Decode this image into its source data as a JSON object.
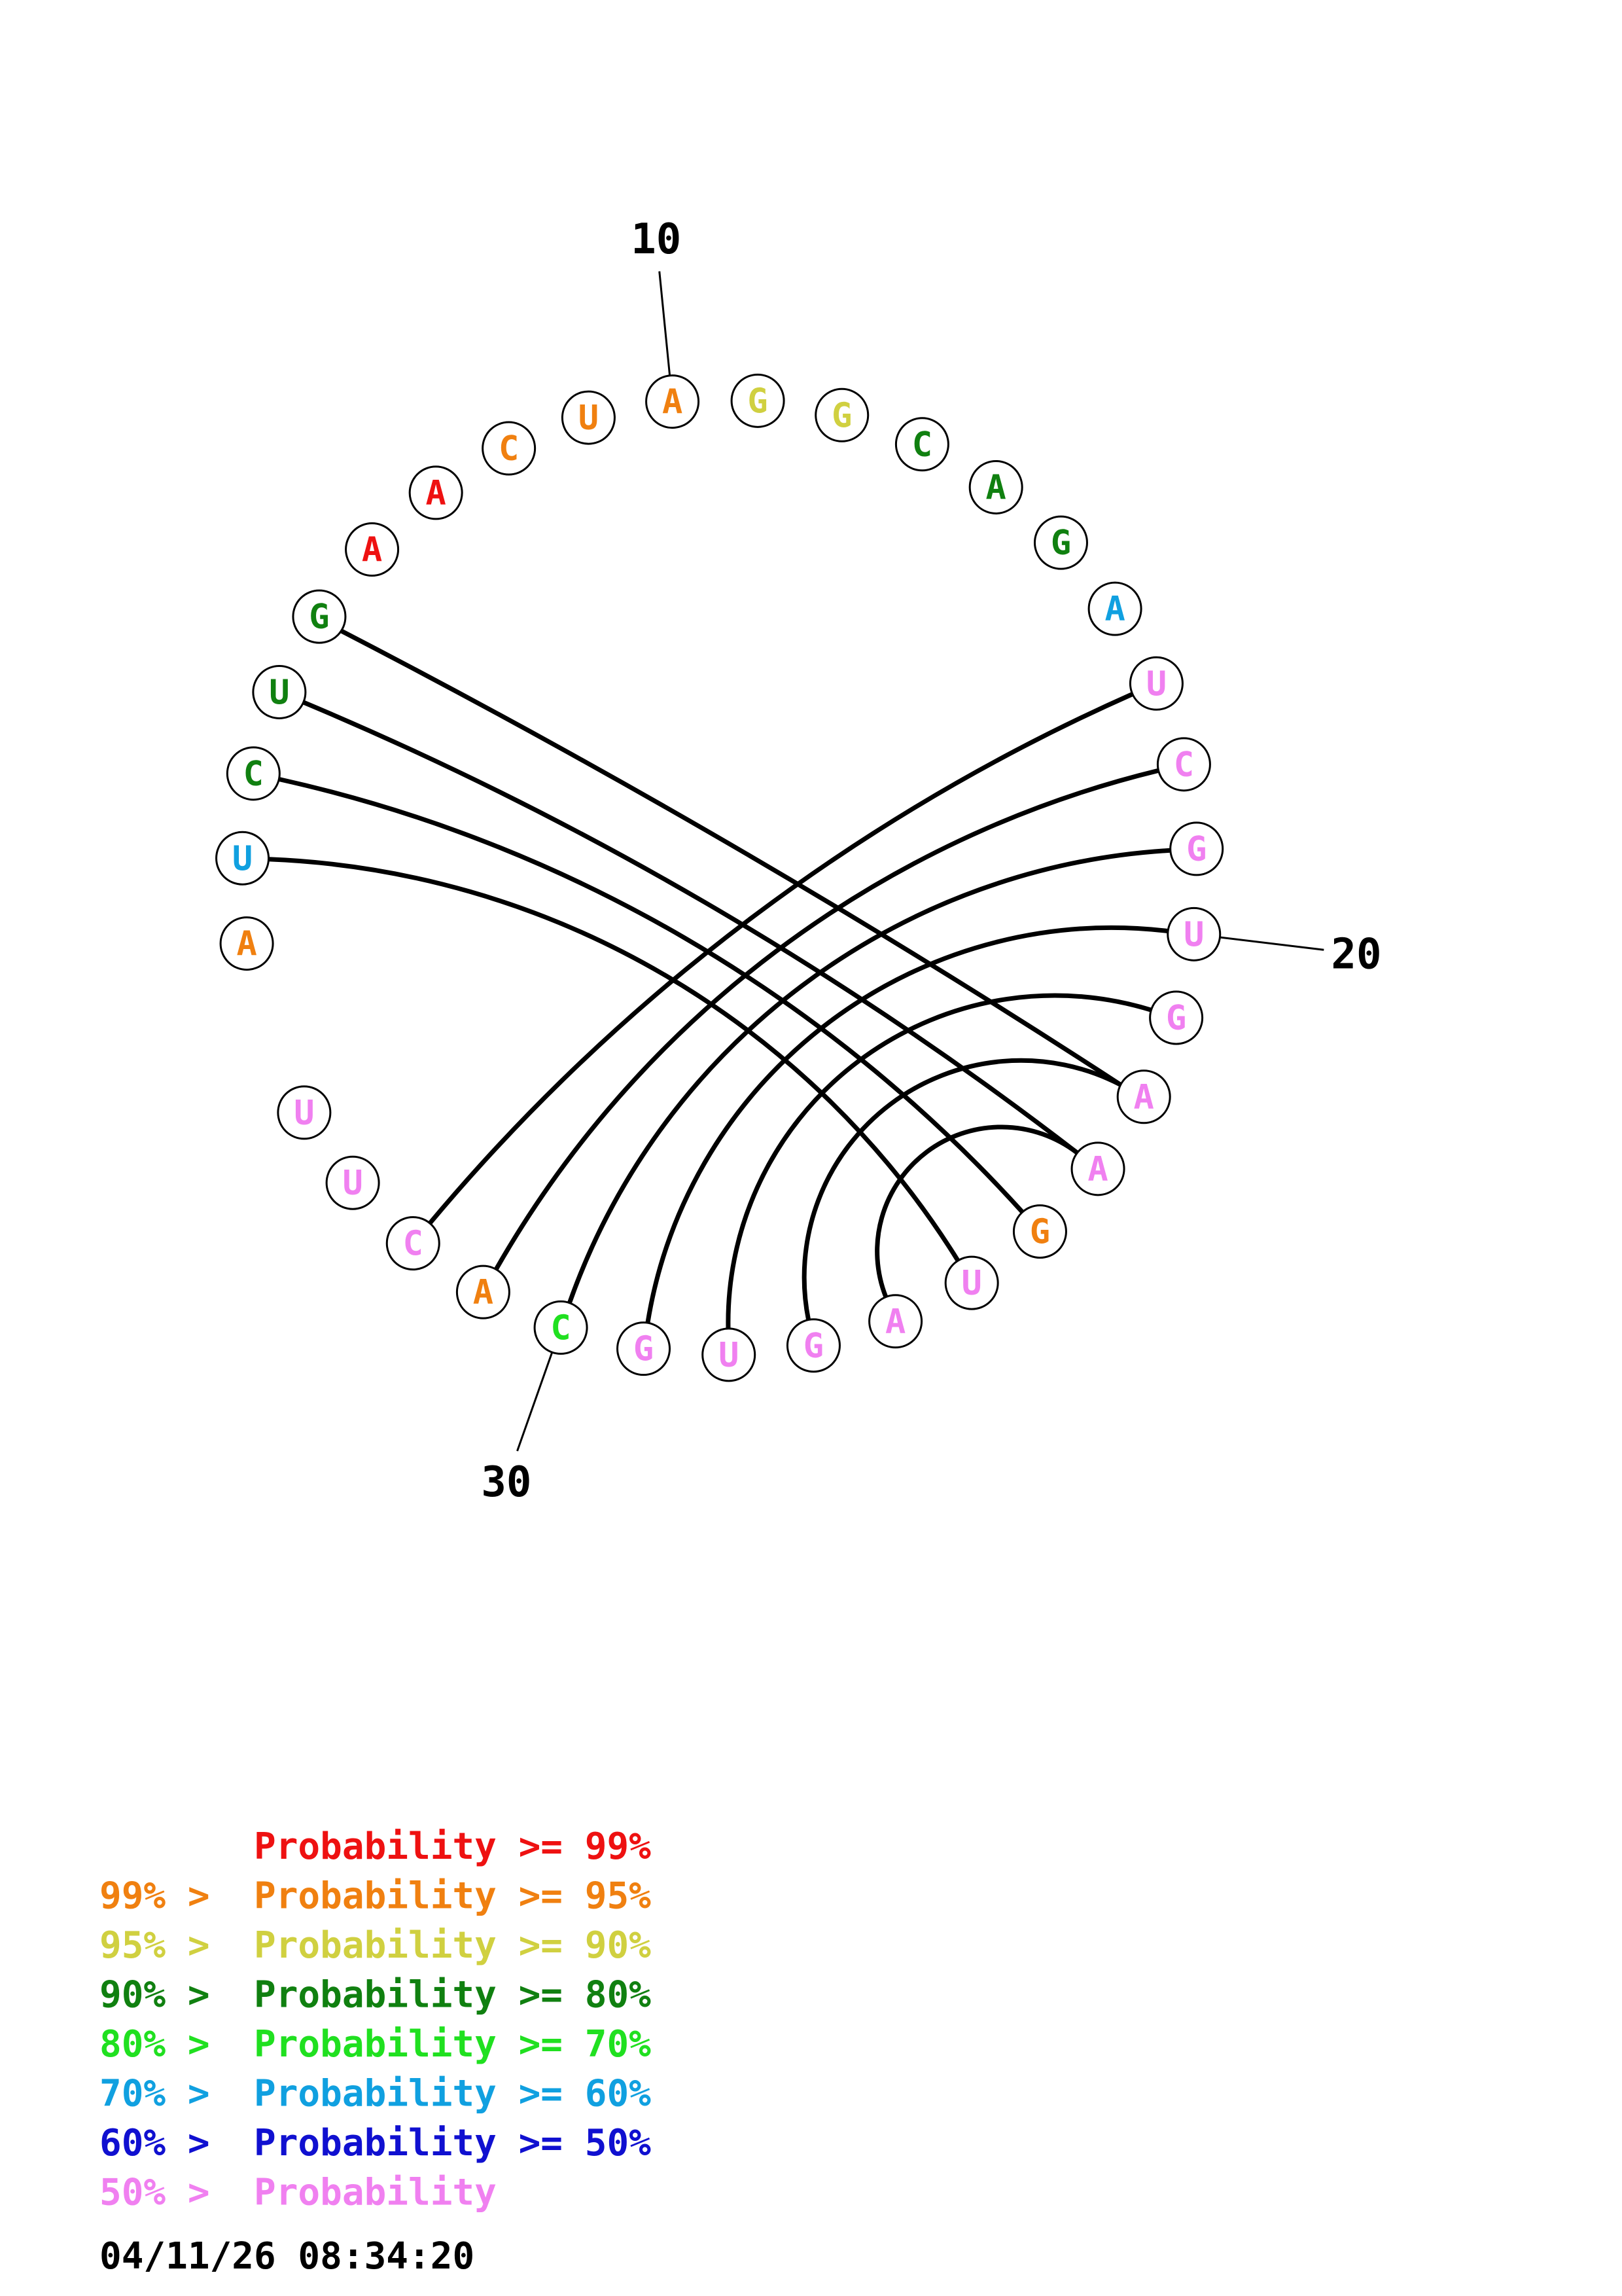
{
  "sequence": [
    "A",
    "U",
    "C",
    "U",
    "G",
    "A",
    "A",
    "C",
    "U",
    "A",
    "G",
    "G",
    "C",
    "A",
    "G",
    "A",
    "U",
    "C",
    "G",
    "U",
    "G",
    "A",
    "A",
    "G",
    "U",
    "A",
    "G",
    "U",
    "G",
    "C",
    "A",
    "C",
    "U",
    "U"
  ],
  "bin_colors": [
    "#ee1111",
    "#f08010",
    "#d0d040",
    "#108010",
    "#20e020",
    "#10a0e0",
    "#1010d0",
    "#f080f0"
  ],
  "nucleotide_bins": [
    1,
    5,
    3,
    3,
    3,
    0,
    0,
    1,
    1,
    1,
    2,
    2,
    3,
    3,
    3,
    5,
    7,
    7,
    7,
    7,
    7,
    7,
    7,
    1,
    7,
    7,
    7,
    7,
    7,
    4,
    1,
    7,
    7,
    7
  ],
  "pairs": [
    [
      2,
      25
    ],
    [
      3,
      24
    ],
    [
      4,
      23
    ],
    [
      5,
      22
    ],
    [
      17,
      32
    ],
    [
      18,
      31
    ],
    [
      19,
      30
    ],
    [
      20,
      29
    ],
    [
      21,
      28
    ],
    [
      22,
      27
    ],
    [
      23,
      26
    ]
  ],
  "position_labels": [
    {
      "index": 10,
      "text": "10"
    },
    {
      "index": 20,
      "text": "20"
    },
    {
      "index": 30,
      "text": "30"
    }
  ],
  "legend": [
    {
      "prefix": "",
      "text": "Probability >= 99%",
      "bin": 0
    },
    {
      "prefix": "99% > ",
      "text": "Probability >= 95%",
      "bin": 1
    },
    {
      "prefix": "95% > ",
      "text": "Probability >= 90%",
      "bin": 2
    },
    {
      "prefix": "90% > ",
      "text": "Probability >= 80%",
      "bin": 3
    },
    {
      "prefix": "80% > ",
      "text": "Probability >= 70%",
      "bin": 4
    },
    {
      "prefix": "70% > ",
      "text": "Probability >= 60%",
      "bin": 5
    },
    {
      "prefix": "60% > ",
      "text": "Probability >= 50%",
      "bin": 6
    },
    {
      "prefix": "50% > ",
      "text": "Probability",
      "bin": 7
    }
  ],
  "timestamp": "04/11/26 08:34:20"
}
